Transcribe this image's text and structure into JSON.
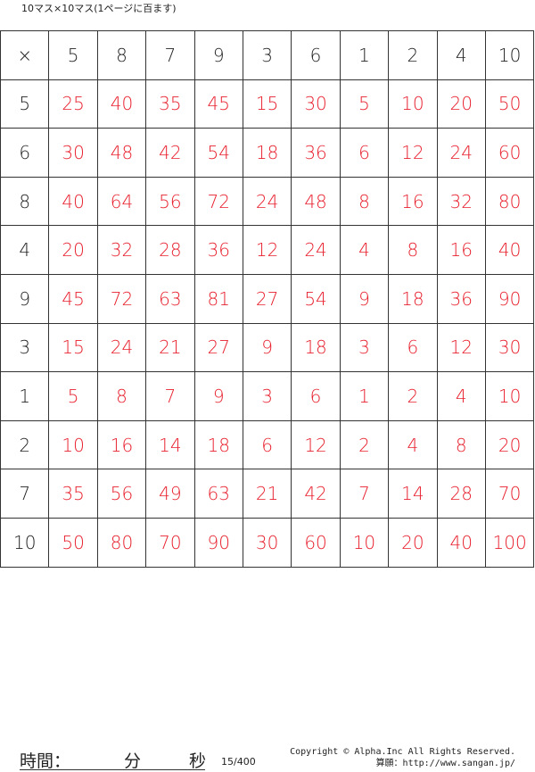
{
  "title": "10マス×10マス(1ページに百ます)",
  "grid": {
    "operator": "×",
    "columns": [
      "5",
      "8",
      "7",
      "9",
      "3",
      "6",
      "1",
      "2",
      "4",
      "10"
    ],
    "rows": [
      {
        "label": "5",
        "answers": [
          "25",
          "40",
          "35",
          "45",
          "15",
          "30",
          "5",
          "10",
          "20",
          "50"
        ]
      },
      {
        "label": "6",
        "answers": [
          "30",
          "48",
          "42",
          "54",
          "18",
          "36",
          "6",
          "12",
          "24",
          "60"
        ]
      },
      {
        "label": "8",
        "answers": [
          "40",
          "64",
          "56",
          "72",
          "24",
          "48",
          "8",
          "16",
          "32",
          "80"
        ]
      },
      {
        "label": "4",
        "answers": [
          "20",
          "32",
          "28",
          "36",
          "12",
          "24",
          "4",
          "8",
          "16",
          "40"
        ]
      },
      {
        "label": "9",
        "answers": [
          "45",
          "72",
          "63",
          "81",
          "27",
          "54",
          "9",
          "18",
          "36",
          "90"
        ]
      },
      {
        "label": "3",
        "answers": [
          "15",
          "24",
          "21",
          "27",
          "9",
          "18",
          "3",
          "6",
          "12",
          "30"
        ]
      },
      {
        "label": "1",
        "answers": [
          "5",
          "8",
          "7",
          "9",
          "3",
          "6",
          "1",
          "2",
          "4",
          "10"
        ]
      },
      {
        "label": "2",
        "answers": [
          "10",
          "16",
          "14",
          "18",
          "6",
          "12",
          "2",
          "4",
          "8",
          "20"
        ]
      },
      {
        "label": "7",
        "answers": [
          "35",
          "56",
          "49",
          "63",
          "21",
          "42",
          "7",
          "14",
          "28",
          "70"
        ]
      },
      {
        "label": "10",
        "answers": [
          "50",
          "80",
          "70",
          "90",
          "30",
          "60",
          "10",
          "20",
          "40",
          "100"
        ]
      }
    ],
    "answer_color": "#e8202e"
  },
  "footer": {
    "time_label": "時間：",
    "minutes_label": "分",
    "seconds_label": "秒",
    "page": "15/400",
    "copyright": "Copyright © Alpha.Inc All Rights Reserved.",
    "site": "算願：http://www.sangan.jp/"
  }
}
